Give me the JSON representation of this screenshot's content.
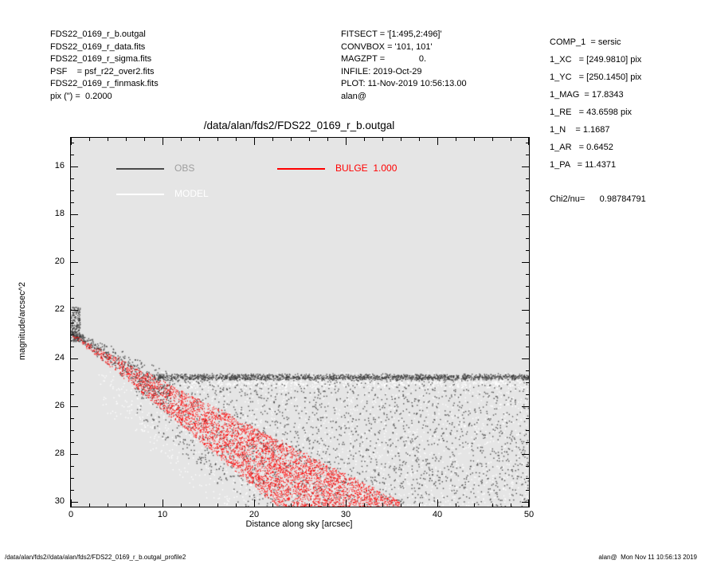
{
  "header_left": {
    "lines": [
      "FDS22_0169_r_b.outgal",
      "FDS22_0169_r_data.fits",
      "FDS22_0169_r_sigma.fits",
      "PSF    = psf_r22_over2.fits",
      "FDS22_0169_r_finmask.fits",
      "pix (\") =  0.2000"
    ]
  },
  "header_mid": {
    "lines": [
      "FITSECT = '[1:495,2:496]'",
      "CONVBOX = '101, 101'",
      "MAGZPT =              0.",
      "INFILE: 2019-Oct-29",
      "PLOT: 11-Nov-2019 10:56:13.00",
      "alan@"
    ]
  },
  "header_right": {
    "lines": [
      "COMP_1  = sersic",
      "1_XC   = [249.9810] pix",
      "1_YC   = [250.1450] pix",
      "1_MAG  = 17.8343",
      "1_RE   = 43.6598 pix",
      "1_N    = 1.1687",
      "1_AR   = 0.6452",
      "1_PA   = 11.4371"
    ],
    "chi2": "Chi2/nu=      0.98784791"
  },
  "footer": {
    "left": "/data/alan/fds2//data/alan/fds2/FDS22_0169_r_b.outgal_profile2",
    "right": "alan@  Mon Nov 11 10:56:13 2019"
  },
  "chart_data": {
    "type": "scatter",
    "title": "/data/alan/fds2/FDS22_0169_r_b.outgal",
    "xlabel": "Distance along sky [arcsec]",
    "ylabel": "magnitude/arcsec^2",
    "xlim": [
      0,
      50
    ],
    "ylim": [
      14.8,
      30.2
    ],
    "y_inverted": true,
    "xticks": [
      0,
      10,
      20,
      30,
      40,
      50
    ],
    "yticks": [
      16,
      18,
      20,
      22,
      24,
      26,
      28,
      30
    ],
    "x_minor_step": 2,
    "y_minor_step": 0.5,
    "plot_bg": "#e5e5e5",
    "legend": [
      {
        "label": "OBS",
        "color": "#4a4a4a",
        "text_color": "#9e9e9e"
      },
      {
        "label": "MODEL",
        "color": "#ffffff",
        "text_color": "#ffffff"
      },
      {
        "label": "BULGE  1.000",
        "color": "#ff0000",
        "text_color": "#ff0000"
      }
    ],
    "series": [
      {
        "name": "MODEL",
        "color": "#ffffff",
        "dot": 1.4,
        "alpha": 1,
        "clouds": [
          {
            "type": "band",
            "n": 500,
            "x": [
              12,
              50
            ],
            "y": 25.05,
            "spread": 0.22
          },
          {
            "type": "cloud",
            "n": 2400,
            "x": [
              3,
              50
            ],
            "y": [
              24.55,
              30.2
            ],
            "skip_below_line": [
              25.0,
              0.33
            ]
          }
        ]
      },
      {
        "name": "OBS",
        "color": "#3c3c3c",
        "dot": 1.4,
        "alpha": 0.9,
        "clouds": [
          {
            "type": "box",
            "n": 180,
            "x": [
              0,
              1.0
            ],
            "y": [
              21.85,
              23.3
            ]
          },
          {
            "type": "trend",
            "n": 450,
            "x": [
              0,
              11
            ],
            "a": 22.9,
            "b": 0.24,
            "spread_base": 0.12,
            "spread_grow": 0.09
          },
          {
            "type": "band",
            "n": 1500,
            "x": [
              9,
              50
            ],
            "y": 24.78,
            "spread": 0.16
          },
          {
            "type": "cloud",
            "n": 2300,
            "x": [
              7,
              50
            ],
            "y": [
              24.95,
              30.2
            ],
            "skip_below_line": [
              24.0,
              0.33
            ]
          }
        ]
      },
      {
        "name": "BULGE",
        "color": "#ff0000",
        "dot": 1.15,
        "alpha": 1,
        "clouds": [
          {
            "type": "wedge",
            "n": 6500,
            "x": [
              0,
              36
            ],
            "apex_y": 23.0,
            "slope_top": 0.1944,
            "slope_bottom": 0.3182,
            "clip_y": 30.25
          }
        ]
      },
      {
        "name": "MODEL",
        "color": "#ffffff",
        "dot": 1.3,
        "alpha": 1,
        "clouds": [
          {
            "type": "wedge",
            "n": 280,
            "x": [
              0,
              34
            ],
            "apex_y": 23.0,
            "slope_top": 0.2,
            "slope_bottom": 0.31,
            "clip_y": 30.2
          }
        ]
      }
    ]
  }
}
